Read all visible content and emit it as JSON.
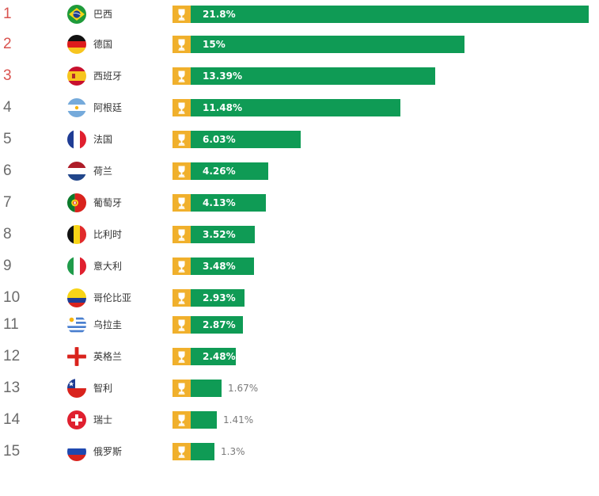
{
  "chart_data": {
    "type": "bar",
    "orientation": "horizontal",
    "title": "",
    "xlabel": "",
    "ylabel": "",
    "unit": "%",
    "xlim": [
      0,
      21.8
    ],
    "ranks": [
      "1",
      "2",
      "3",
      "4",
      "5",
      "6",
      "7",
      "8",
      "9",
      "10",
      "11",
      "12",
      "13",
      "14",
      "15"
    ],
    "categories": [
      "巴西",
      "德国",
      "西班牙",
      "阿根廷",
      "法国",
      "荷兰",
      "葡萄牙",
      "比利时",
      "意大利",
      "哥伦比亚",
      "乌拉圭",
      "英格兰",
      "智利",
      "瑞士",
      "俄罗斯"
    ],
    "values": [
      21.8,
      15,
      13.39,
      11.48,
      6.03,
      4.26,
      4.13,
      3.52,
      3.48,
      2.93,
      2.87,
      2.48,
      1.67,
      1.41,
      1.3
    ],
    "value_labels": [
      "21.8%",
      "15%",
      "13.39%",
      "11.48%",
      "6.03%",
      "4.26%",
      "4.13%",
      "3.52%",
      "3.48%",
      "2.93%",
      "2.87%",
      "2.48%",
      "1.67%",
      "1.41%",
      "1.3%"
    ],
    "flag_icons": [
      "brazil-flag-icon",
      "germany-flag-icon",
      "spain-flag-icon",
      "argentina-flag-icon",
      "france-flag-icon",
      "netherlands-flag-icon",
      "portugal-flag-icon",
      "belgium-flag-icon",
      "italy-flag-icon",
      "colombia-flag-icon",
      "uruguay-flag-icon",
      "england-flag-icon",
      "chile-flag-icon",
      "switzerland-flag-icon",
      "russia-flag-icon"
    ],
    "colors": {
      "bar": "#0f9b55",
      "trophy_bg": "#f0b02c",
      "trophy_icon": "#ffffff",
      "top_rank": "#d9534f",
      "rank": "#6b6b6b",
      "label_inside": "#ffffff",
      "label_outside": "#7a7a7a"
    }
  }
}
